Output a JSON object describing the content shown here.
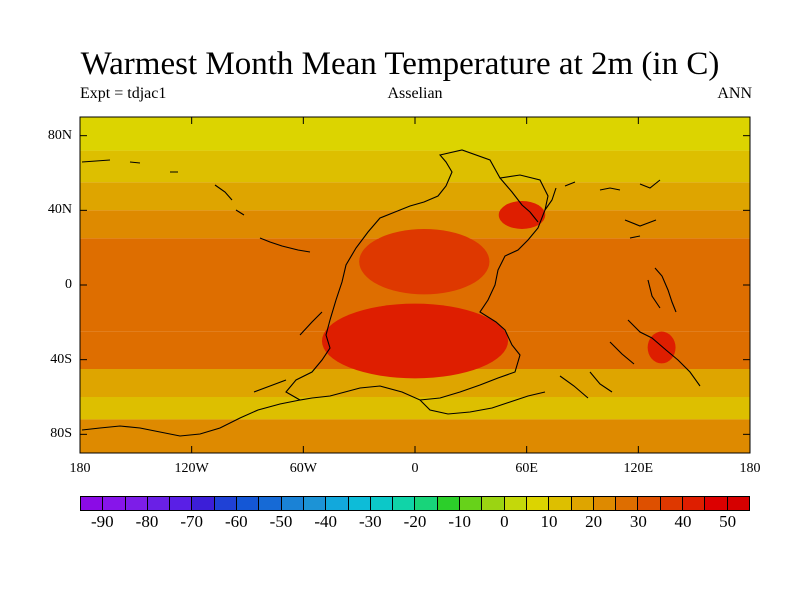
{
  "title": "Warmest Month Mean Temperature at 2m (in C)",
  "subtitle_left": "Expt = tdjac1",
  "subtitle_center": "Asselian",
  "subtitle_right": "ANN",
  "map": {
    "projection": "equirectangular",
    "lon_range": [
      -180,
      180
    ],
    "lat_range": [
      -90,
      90
    ],
    "xtick_labels": [
      "180",
      "120W",
      "60W",
      "0",
      "60E",
      "120E",
      "180"
    ],
    "xtick_values": [
      -180,
      -120,
      -60,
      0,
      60,
      120,
      180
    ],
    "ytick_labels": [
      "80N",
      "40N",
      "0",
      "40S",
      "80S"
    ],
    "ytick_values": [
      80,
      40,
      0,
      -40,
      -80
    ]
  },
  "colorbar": {
    "labels": [
      "-90",
      "-80",
      "-70",
      "-60",
      "-50",
      "-40",
      "-30",
      "-20",
      "-10",
      "0",
      "10",
      "20",
      "30",
      "40",
      "50"
    ],
    "label_values": [
      -90,
      -80,
      -70,
      -60,
      -50,
      -40,
      -30,
      -20,
      -10,
      0,
      10,
      20,
      30,
      40,
      50
    ],
    "min": -95,
    "max": 55,
    "step": 5,
    "colors": [
      "#8b0be6",
      "#8715ea",
      "#7d1de8",
      "#6a20e6",
      "#5a1fe6",
      "#3c1ed8",
      "#1f41d6",
      "#1457d6",
      "#166ad6",
      "#1a82d6",
      "#1c93d6",
      "#12a8dc",
      "#0dbcd8",
      "#0cc8c8",
      "#10d4a8",
      "#18d47a",
      "#2ccf2a",
      "#67d21a",
      "#9bd412",
      "#c4d80a",
      "#dcd400",
      "#ddbf00",
      "#dea500",
      "#de8a00",
      "#de6e00",
      "#de5000",
      "#de3800",
      "#de1e00",
      "#dc0000",
      "#d60000"
    ]
  },
  "chart_data": {
    "type": "heatmap",
    "title": "Warmest Month Mean Temperature at 2m (in C)",
    "units": "C",
    "zone_bands": [
      {
        "lat_range": [
          90,
          72
        ],
        "value": 5
      },
      {
        "lat_range": [
          72,
          55
        ],
        "value": 12
      },
      {
        "lat_range": [
          55,
          40
        ],
        "value": 18
      },
      {
        "lat_range": [
          40,
          25
        ],
        "value": 22
      },
      {
        "lat_range": [
          25,
          -25
        ],
        "value": 27
      },
      {
        "lat_range": [
          -25,
          -45
        ],
        "value": 25
      },
      {
        "lat_range": [
          -45,
          -60
        ],
        "value": 18
      },
      {
        "lat_range": [
          -60,
          -72
        ],
        "value": 10
      },
      {
        "lat_range": [
          -72,
          -90
        ],
        "value": 20
      }
    ],
    "hot_regions": [
      {
        "lon_range": [
          -30,
          40
        ],
        "lat_range": [
          30,
          -5
        ],
        "value": 38
      },
      {
        "lon_range": [
          -50,
          50
        ],
        "lat_range": [
          -10,
          -50
        ],
        "value": 40
      },
      {
        "lon_range": [
          45,
          70
        ],
        "lat_range": [
          45,
          30
        ],
        "value": 40
      },
      {
        "lon_range": [
          125,
          140
        ],
        "lat_range": [
          -25,
          -42
        ],
        "value": 40
      }
    ]
  }
}
